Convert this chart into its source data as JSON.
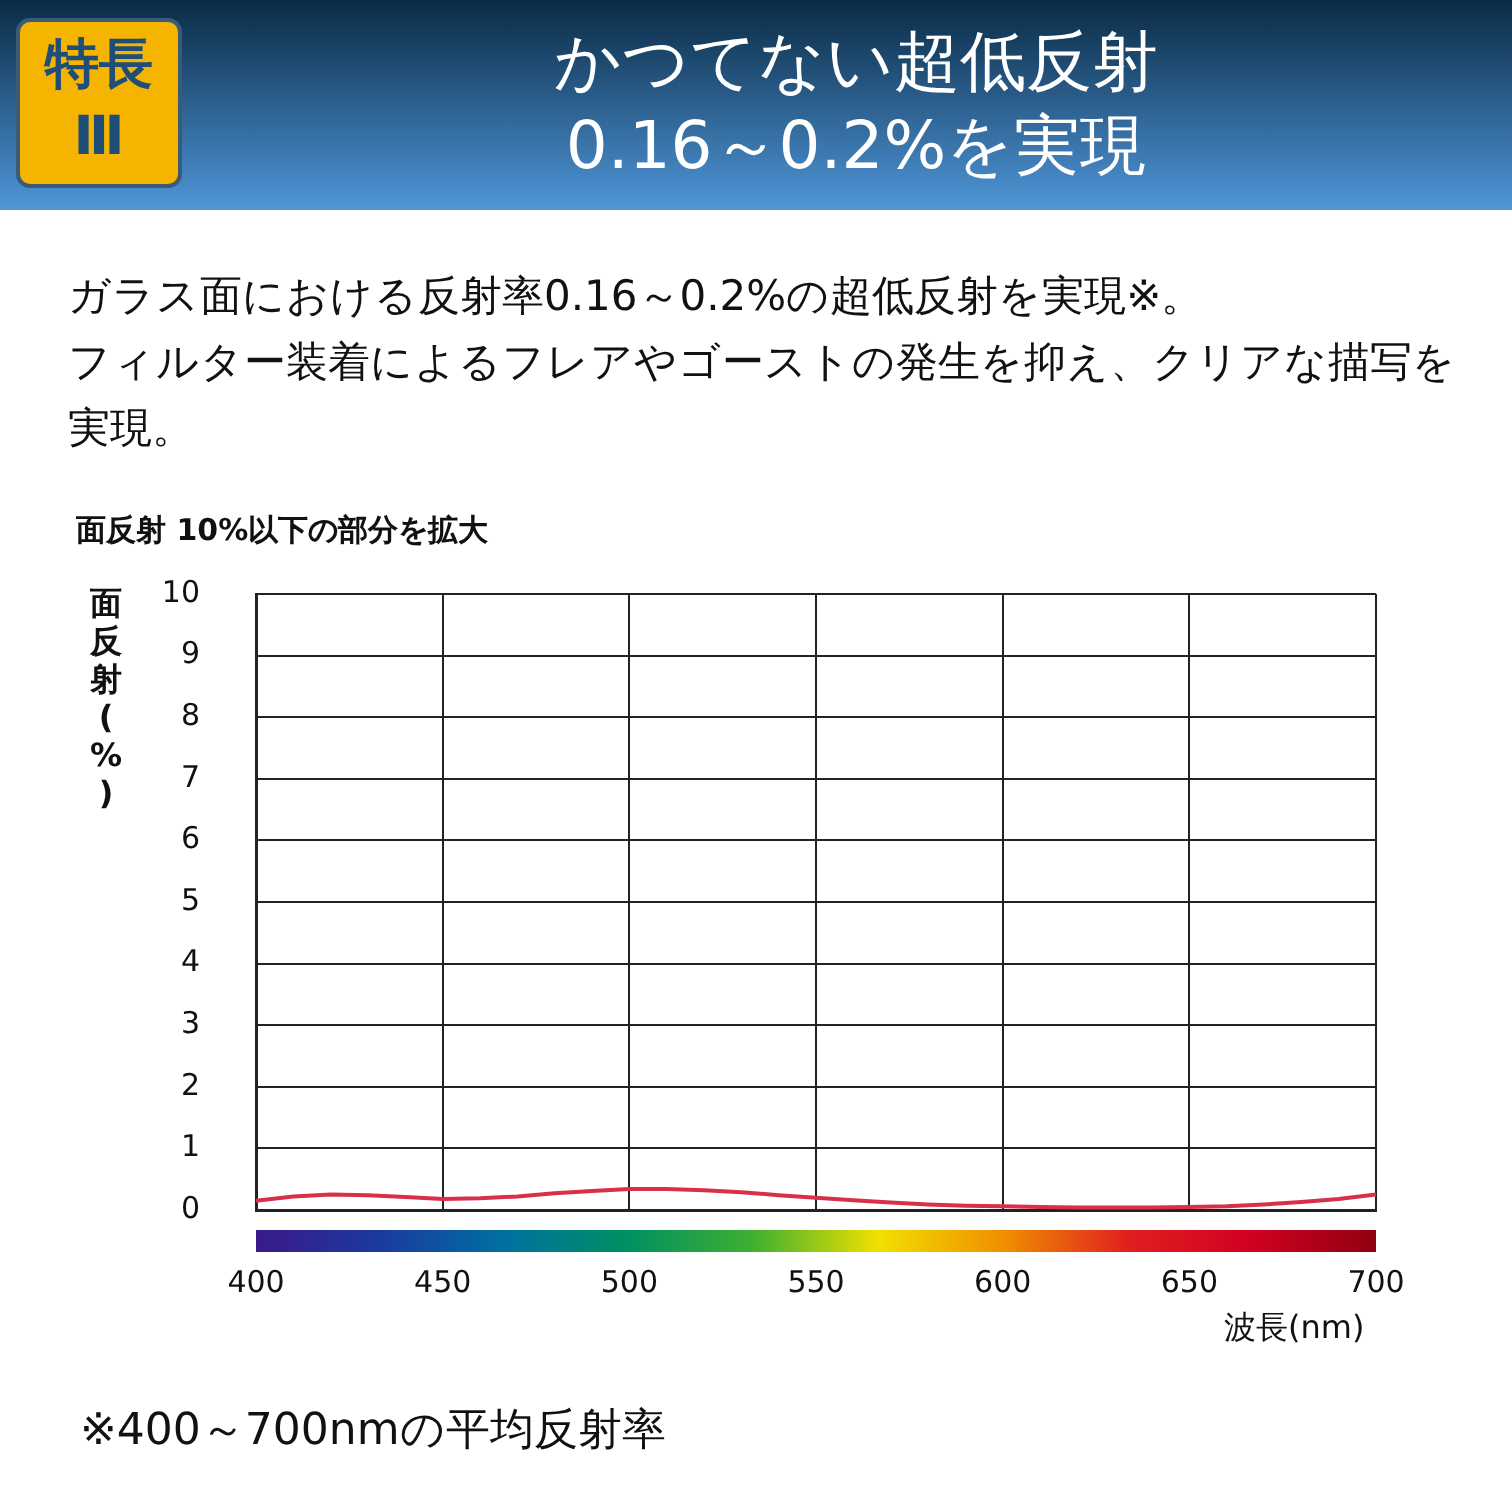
{
  "chart_data": {
    "type": "line",
    "title": "かつてない超低反射\n0.16～0.2%を実現",
    "subtitle": "ガラス面における反射率0.16～0.2%の超低反射を実現※。フィルター装着によるフレアやゴーストの発生を抑え、クリアな描写を実現。",
    "xlabel": "波長(nm)",
    "ylabel": "面反射(%)",
    "annotations": [
      "特長\nⅢ",
      "面反射 10%以下の部分を拡大",
      "※400～700nmの平均反射率"
    ],
    "x": [
      400,
      410,
      420,
      430,
      440,
      450,
      460,
      470,
      480,
      490,
      500,
      510,
      520,
      530,
      540,
      550,
      560,
      570,
      580,
      590,
      600,
      610,
      620,
      630,
      640,
      650,
      660,
      670,
      680,
      690,
      700
    ],
    "series": [
      {
        "color": "#d9304a",
        "values": [
          0.15,
          0.22,
          0.25,
          0.24,
          0.21,
          0.18,
          0.19,
          0.22,
          0.27,
          0.31,
          0.34,
          0.34,
          0.32,
          0.29,
          0.24,
          0.2,
          0.16,
          0.12,
          0.09,
          0.07,
          0.06,
          0.05,
          0.04,
          0.04,
          0.04,
          0.05,
          0.06,
          0.09,
          0.13,
          0.18,
          0.25
        ]
      }
    ],
    "xlim": [
      400,
      700
    ],
    "xticks": [
      400,
      450,
      500,
      550,
      600,
      650,
      700
    ],
    "ylim": [
      0,
      10
    ],
    "yticks": [
      0,
      1,
      2,
      3,
      4,
      5,
      6,
      7,
      8,
      9,
      10
    ],
    "grid": true,
    "legend": false,
    "marker": "none",
    "line_style": "solid"
  }
}
